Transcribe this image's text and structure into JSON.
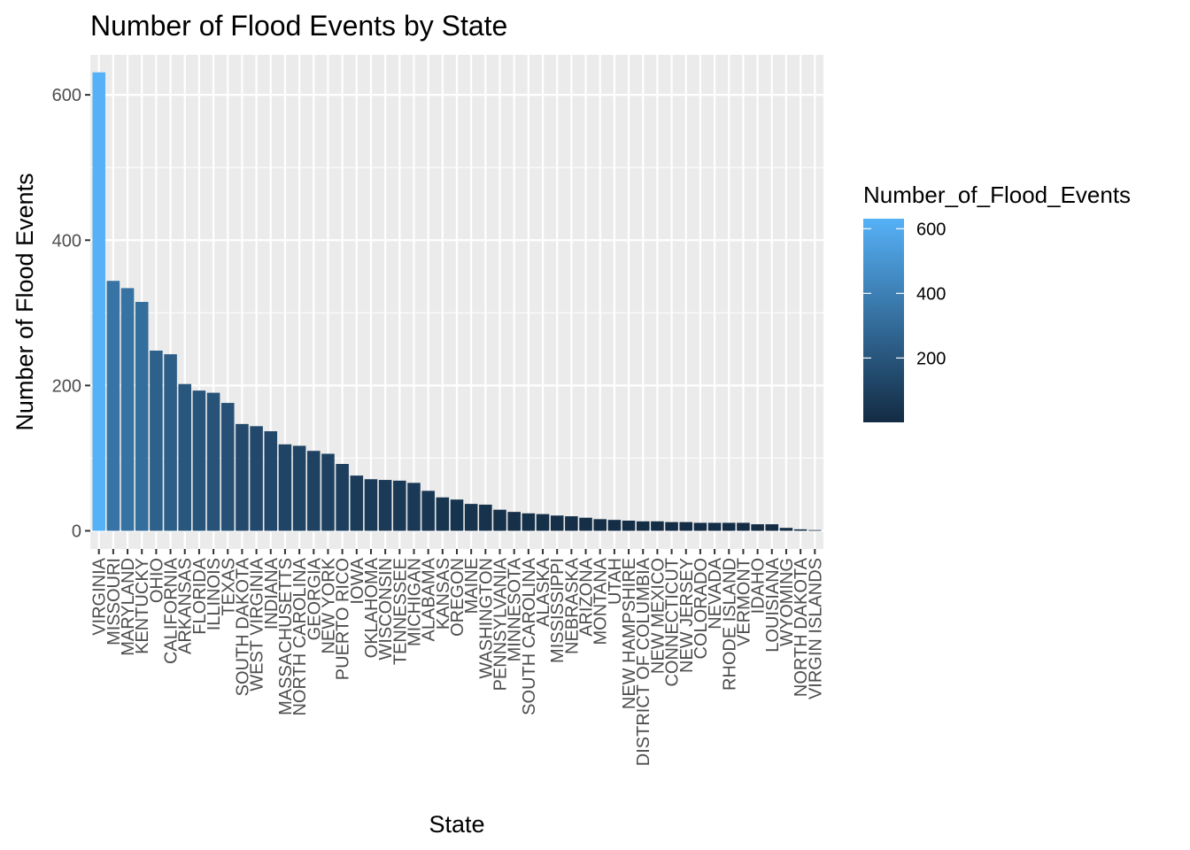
{
  "chart_data": {
    "type": "bar",
    "title": "Number of Flood Events by State",
    "xlabel": "State",
    "ylabel": "Number of Flood Events",
    "ylim": [
      -25,
      655
    ],
    "yticks": [
      0,
      200,
      400,
      600
    ],
    "grid": true,
    "legend": {
      "title": "Number_of_Flood_Events",
      "placement": "right",
      "type": "colorbar",
      "ticks": [
        200,
        400,
        600
      ],
      "low_color": "#132b43",
      "high_color": "#56b1f7",
      "range": [
        1,
        631
      ]
    },
    "categories": [
      "VIRGINIA",
      "MISSOURI",
      "MARYLAND",
      "KENTUCKY",
      "OHIO",
      "CALIFORNIA",
      "ARKANSAS",
      "FLORIDA",
      "ILLINOIS",
      "TEXAS",
      "SOUTH DAKOTA",
      "WEST VIRGINIA",
      "INDIANA",
      "MASSACHUSETTS",
      "NORTH CAROLINA",
      "GEORGIA",
      "NEW YORK",
      "PUERTO RICO",
      "IOWA",
      "OKLAHOMA",
      "WISCONSIN",
      "TENNESSEE",
      "MICHIGAN",
      "ALABAMA",
      "KANSAS",
      "OREGON",
      "MAINE",
      "WASHINGTON",
      "PENNSYLVANIA",
      "MINNESOTA",
      "SOUTH CAROLINA",
      "ALASKA",
      "MISSISSIPPI",
      "NEBRASKA",
      "ARIZONA",
      "MONTANA",
      "UTAH",
      "NEW HAMPSHIRE",
      "DISTRICT OF COLUMBIA",
      "NEW MEXICO",
      "CONNECTICUT",
      "NEW JERSEY",
      "COLORADO",
      "NEVADA",
      "RHODE ISLAND",
      "VERMONT",
      "IDAHO",
      "LOUISIANA",
      "WYOMING",
      "NORTH DAKOTA",
      "VIRGIN ISLANDS"
    ],
    "values": [
      631,
      344,
      334,
      315,
      248,
      243,
      202,
      193,
      190,
      176,
      147,
      144,
      137,
      119,
      117,
      110,
      106,
      92,
      76,
      71,
      70,
      69,
      66,
      55,
      46,
      43,
      37,
      36,
      29,
      26,
      24,
      23,
      21,
      20,
      18,
      16,
      15,
      14,
      13,
      13,
      12,
      12,
      11,
      11,
      11,
      11,
      9,
      9,
      4,
      2,
      1
    ]
  }
}
